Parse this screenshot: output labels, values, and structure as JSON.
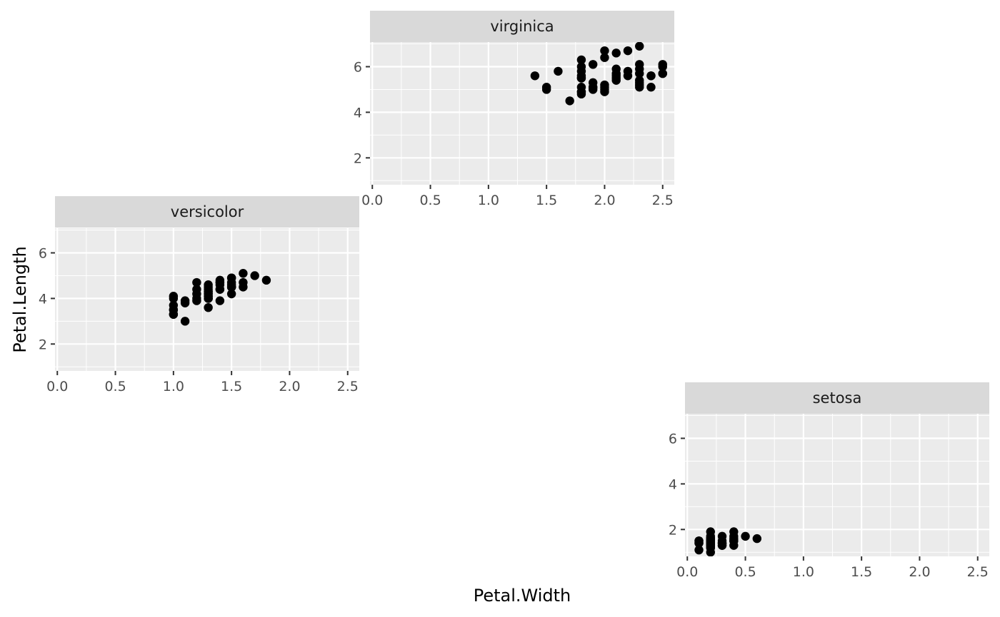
{
  "chart_data": {
    "type": "scatter",
    "facet_layout": "free-positioned grid (manual panel arrangement)",
    "xlabel": "Petal.Width",
    "ylabel": "Petal.Length",
    "xlim": [
      -0.02,
      2.6
    ],
    "ylim": [
      0.82,
      7.08
    ],
    "x_ticks": [
      0.0,
      0.5,
      1.0,
      1.5,
      2.0,
      2.5
    ],
    "x_tick_labels": [
      "0.0",
      "0.5",
      "1.0",
      "1.5",
      "2.0",
      "2.5"
    ],
    "y_ticks": [
      2,
      4,
      6
    ],
    "y_tick_labels": [
      "2",
      "4",
      "6"
    ],
    "grid": true,
    "panel_background": "#ebebeb",
    "strip_background": "#d9d9d9",
    "point_color": "#000000",
    "panels": [
      {
        "strip": "virginica",
        "points": [
          [
            2.5,
            6.0
          ],
          [
            1.9,
            5.1
          ],
          [
            2.1,
            5.9
          ],
          [
            1.8,
            5.6
          ],
          [
            2.2,
            5.8
          ],
          [
            2.1,
            6.6
          ],
          [
            1.7,
            4.5
          ],
          [
            1.8,
            6.3
          ],
          [
            1.8,
            5.8
          ],
          [
            2.5,
            6.1
          ],
          [
            2.0,
            5.1
          ],
          [
            1.9,
            5.3
          ],
          [
            2.1,
            5.5
          ],
          [
            2.0,
            5.0
          ],
          [
            2.4,
            5.1
          ],
          [
            2.3,
            5.3
          ],
          [
            1.8,
            5.5
          ],
          [
            2.2,
            6.7
          ],
          [
            2.3,
            6.9
          ],
          [
            1.5,
            5.0
          ],
          [
            2.3,
            5.7
          ],
          [
            2.0,
            4.9
          ],
          [
            2.0,
            6.7
          ],
          [
            1.8,
            4.9
          ],
          [
            2.1,
            5.7
          ],
          [
            1.8,
            6.0
          ],
          [
            1.8,
            4.8
          ],
          [
            1.8,
            4.9
          ],
          [
            2.1,
            5.6
          ],
          [
            1.6,
            5.8
          ],
          [
            1.9,
            6.1
          ],
          [
            2.0,
            6.4
          ],
          [
            2.2,
            5.6
          ],
          [
            1.5,
            5.1
          ],
          [
            1.4,
            5.6
          ],
          [
            2.3,
            6.1
          ],
          [
            2.4,
            5.6
          ],
          [
            1.8,
            5.5
          ],
          [
            2.1,
            5.4
          ],
          [
            2.4,
            5.6
          ],
          [
            2.3,
            5.1
          ],
          [
            1.9,
            5.1
          ],
          [
            2.3,
            5.9
          ],
          [
            2.5,
            5.7
          ],
          [
            2.3,
            5.2
          ],
          [
            1.9,
            5.0
          ],
          [
            2.0,
            5.2
          ],
          [
            2.3,
            5.4
          ],
          [
            1.8,
            5.1
          ],
          [
            2.5,
            5.7
          ]
        ]
      },
      {
        "strip": "versicolor",
        "points": [
          [
            1.4,
            4.7
          ],
          [
            1.5,
            4.5
          ],
          [
            1.5,
            4.9
          ],
          [
            1.3,
            4.0
          ],
          [
            1.5,
            4.6
          ],
          [
            1.3,
            4.5
          ],
          [
            1.6,
            4.7
          ],
          [
            1.0,
            3.3
          ],
          [
            1.3,
            4.6
          ],
          [
            1.4,
            3.9
          ],
          [
            1.0,
            3.5
          ],
          [
            1.5,
            4.2
          ],
          [
            1.0,
            4.0
          ],
          [
            1.4,
            4.7
          ],
          [
            1.3,
            3.6
          ],
          [
            1.4,
            4.4
          ],
          [
            1.5,
            4.5
          ],
          [
            1.0,
            4.1
          ],
          [
            1.5,
            4.5
          ],
          [
            1.1,
            3.9
          ],
          [
            1.8,
            4.8
          ],
          [
            1.3,
            4.0
          ],
          [
            1.5,
            4.9
          ],
          [
            1.2,
            4.7
          ],
          [
            1.3,
            4.3
          ],
          [
            1.4,
            4.4
          ],
          [
            1.4,
            4.8
          ],
          [
            1.7,
            5.0
          ],
          [
            1.5,
            4.5
          ],
          [
            1.0,
            3.5
          ],
          [
            1.1,
            3.8
          ],
          [
            1.0,
            3.7
          ],
          [
            1.2,
            3.9
          ],
          [
            1.6,
            5.1
          ],
          [
            1.5,
            4.5
          ],
          [
            1.6,
            4.5
          ],
          [
            1.5,
            4.7
          ],
          [
            1.3,
            4.4
          ],
          [
            1.3,
            4.1
          ],
          [
            1.3,
            4.0
          ],
          [
            1.2,
            4.4
          ],
          [
            1.4,
            4.6
          ],
          [
            1.2,
            4.0
          ],
          [
            1.0,
            3.3
          ],
          [
            1.3,
            4.2
          ],
          [
            1.2,
            4.2
          ],
          [
            1.3,
            4.2
          ],
          [
            1.3,
            4.3
          ],
          [
            1.1,
            3.0
          ],
          [
            1.3,
            4.1
          ]
        ]
      },
      {
        "strip": "setosa",
        "points": [
          [
            0.2,
            1.4
          ],
          [
            0.2,
            1.4
          ],
          [
            0.2,
            1.3
          ],
          [
            0.2,
            1.5
          ],
          [
            0.2,
            1.4
          ],
          [
            0.4,
            1.7
          ],
          [
            0.3,
            1.4
          ],
          [
            0.2,
            1.5
          ],
          [
            0.2,
            1.4
          ],
          [
            0.1,
            1.5
          ],
          [
            0.2,
            1.5
          ],
          [
            0.2,
            1.6
          ],
          [
            0.1,
            1.4
          ],
          [
            0.1,
            1.1
          ],
          [
            0.2,
            1.2
          ],
          [
            0.4,
            1.5
          ],
          [
            0.4,
            1.3
          ],
          [
            0.3,
            1.4
          ],
          [
            0.3,
            1.7
          ],
          [
            0.3,
            1.5
          ],
          [
            0.2,
            1.7
          ],
          [
            0.4,
            1.5
          ],
          [
            0.2,
            1.0
          ],
          [
            0.5,
            1.7
          ],
          [
            0.2,
            1.9
          ],
          [
            0.2,
            1.6
          ],
          [
            0.4,
            1.6
          ],
          [
            0.2,
            1.5
          ],
          [
            0.2,
            1.4
          ],
          [
            0.2,
            1.6
          ],
          [
            0.2,
            1.6
          ],
          [
            0.4,
            1.5
          ],
          [
            0.1,
            1.5
          ],
          [
            0.2,
            1.4
          ],
          [
            0.2,
            1.5
          ],
          [
            0.2,
            1.2
          ],
          [
            0.2,
            1.3
          ],
          [
            0.1,
            1.4
          ],
          [
            0.2,
            1.3
          ],
          [
            0.2,
            1.5
          ],
          [
            0.3,
            1.3
          ],
          [
            0.3,
            1.3
          ],
          [
            0.2,
            1.3
          ],
          [
            0.6,
            1.6
          ],
          [
            0.4,
            1.9
          ],
          [
            0.3,
            1.4
          ],
          [
            0.2,
            1.6
          ],
          [
            0.2,
            1.4
          ],
          [
            0.2,
            1.5
          ],
          [
            0.2,
            1.4
          ]
        ]
      }
    ]
  }
}
